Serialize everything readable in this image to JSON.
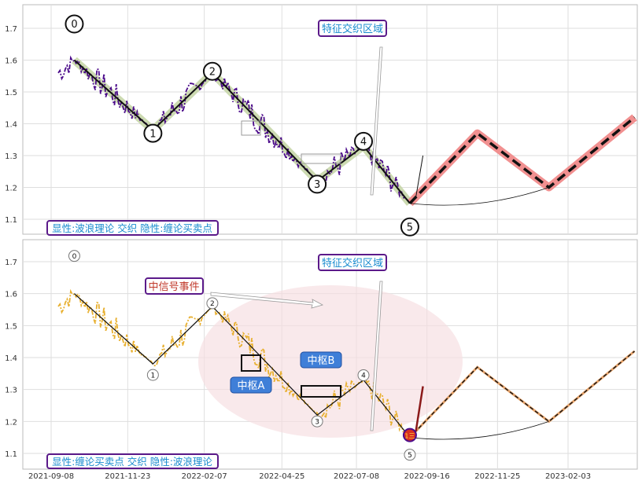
{
  "chart_data": [
    {
      "type": "line",
      "panel": "top",
      "ylim": [
        1.06,
        1.76
      ],
      "yticks": [
        "1.1",
        "1.2",
        "1.3",
        "1.4",
        "1.5",
        "1.6",
        "1.7"
      ],
      "legend_text": "显性:波浪理论 交织 隐性:缠论买卖点",
      "annotation": "特征交织区域",
      "wave_points": [
        {
          "label": "0",
          "x": "2021-10-01",
          "y": 1.6
        },
        {
          "label": "1",
          "x": "2021-12-18",
          "y": 1.38
        },
        {
          "label": "2",
          "x": "2022-02-15",
          "y": 1.56
        },
        {
          "label": "3",
          "x": "2022-05-30",
          "y": 1.22
        },
        {
          "label": "4",
          "x": "2022-07-15",
          "y": 1.33
        },
        {
          "label": "5",
          "x": "2022-08-30",
          "y": 1.15
        }
      ],
      "projection": [
        {
          "x": "2022-08-30",
          "y": 1.15
        },
        {
          "x": "2022-11-05",
          "y": 1.37
        },
        {
          "x": "2023-01-15",
          "y": 1.2
        },
        {
          "x": "2023-04-10",
          "y": 1.42
        }
      ]
    },
    {
      "type": "line",
      "panel": "bottom",
      "ylim": [
        1.06,
        1.76
      ],
      "yticks": [
        "1.1",
        "1.2",
        "1.3",
        "1.4",
        "1.5",
        "1.6",
        "1.7"
      ],
      "xticks": [
        "2021-09-08",
        "2021-11-23",
        "2022-02-07",
        "2022-04-25",
        "2022-07-08",
        "2022-09-16",
        "2022-11-25",
        "2023-02-03"
      ],
      "legend_text": "显性:缠论买卖点 交织 隐性:波浪理论",
      "annotation": "特征交织区域",
      "event_label": "中信号事件",
      "zone_a_label": "中枢A",
      "zone_b_label": "中枢B",
      "signal_marker": "1三",
      "wave_points": [
        {
          "label": "0",
          "x": "2021-10-01",
          "y": 1.6
        },
        {
          "label": "1",
          "x": "2021-12-18",
          "y": 1.38
        },
        {
          "label": "2",
          "x": "2022-02-15",
          "y": 1.56
        },
        {
          "label": "3",
          "x": "2022-05-30",
          "y": 1.22
        },
        {
          "label": "4",
          "x": "2022-07-15",
          "y": 1.33
        },
        {
          "label": "5",
          "x": "2022-08-30",
          "y": 1.15
        }
      ],
      "projection": [
        {
          "x": "2022-08-30",
          "y": 1.15
        },
        {
          "x": "2022-11-05",
          "y": 1.37
        },
        {
          "x": "2023-01-15",
          "y": 1.2
        },
        {
          "x": "2023-04-10",
          "y": 1.42
        }
      ]
    }
  ]
}
